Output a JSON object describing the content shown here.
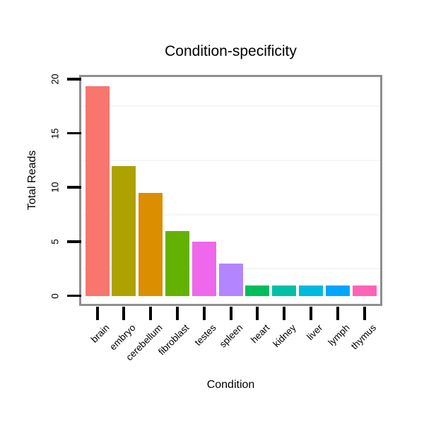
{
  "chart_data": {
    "type": "bar",
    "title": "Condition-specificity",
    "xlabel": "Condition",
    "ylabel": "Total Reads",
    "categories": [
      "brain",
      "embryo",
      "cerebellum",
      "fibroblast",
      "testes",
      "spleen",
      "heart",
      "kidney",
      "liver",
      "lymph",
      "thymus"
    ],
    "values": [
      19.4,
      12,
      9.5,
      6,
      5,
      3,
      1,
      1,
      1,
      1,
      1
    ],
    "bar_colors": [
      "#F8766D",
      "#AEA200",
      "#DB8E00",
      "#64B200",
      "#EF67EB",
      "#B385FF",
      "#00BD5C",
      "#00C1A7",
      "#00BADE",
      "#00A6FF",
      "#FF63B6"
    ],
    "yticks": [
      0,
      5,
      10,
      15,
      20
    ],
    "ylim": [
      0,
      20.3
    ],
    "minor_gridlines": [
      2.5,
      7.5,
      12.5,
      17.5
    ],
    "grid": "minor-horizontal-only",
    "legend": "none",
    "style": {
      "background": "#ffffff",
      "panel_border": "#8e8e8e",
      "minor_grid_color": "#f6f6f6",
      "tick_color": "#000000",
      "text_color": "#000000"
    }
  }
}
